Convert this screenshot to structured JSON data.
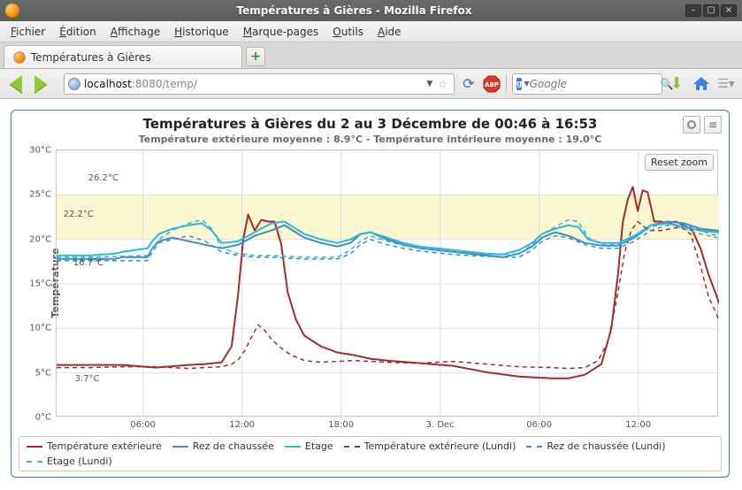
{
  "window": {
    "title": "Températures à Gières - Mozilla Firefox"
  },
  "menubar": {
    "items": [
      "Fichier",
      "Édition",
      "Affichage",
      "Historique",
      "Marque-pages",
      "Outils",
      "Aide"
    ]
  },
  "tabs": {
    "active_label": "Températures à Gières"
  },
  "urlbar": {
    "host": "localhost",
    "rest": ":8080/temp/"
  },
  "searchbar": {
    "engine_letter": "g",
    "placeholder": "Google"
  },
  "chart": {
    "type": "line",
    "title": "Températures à Gières du 2 au 3 Décembre de 00:46 à 16:53",
    "subtitle": "Température extérieure moyenne : 8.9°C - Température intérieure moyenne : 19.0°C",
    "reset_zoom_label": "Reset zoom",
    "ylabel": "Température",
    "background_color": "#ffffff",
    "yellow_band": {
      "from": 20,
      "to": 25,
      "color": "#fcf8d2"
    },
    "grid_color": "#e0e0e0",
    "axis_color": "#c7c7c7",
    "ylim": [
      0,
      30
    ],
    "ytick_step": 5,
    "ytick_labels": [
      "0°C",
      "5°C",
      "10°C",
      "15°C",
      "20°C",
      "25°C",
      "30°C"
    ],
    "x_range_hours": 40.12,
    "xticks": [
      {
        "t": 5.23,
        "label": "06:00"
      },
      {
        "t": 11.23,
        "label": "12:00"
      },
      {
        "t": 17.23,
        "label": "18:00"
      },
      {
        "t": 23.23,
        "label": "3. Dec"
      },
      {
        "t": 29.23,
        "label": "06:00"
      },
      {
        "t": 35.23,
        "label": "12:00"
      }
    ],
    "data_labels": [
      {
        "t": 1.8,
        "y": 26.2,
        "text": "26.2°C"
      },
      {
        "t": 0.3,
        "y": 22.2,
        "text": "22.2°C"
      },
      {
        "t": 0.9,
        "y": 16.7,
        "text": "16.7°C"
      },
      {
        "t": 1.0,
        "y": 3.7,
        "text": "3.7°C"
      }
    ],
    "series": [
      {
        "name": "Température extérieure",
        "color": "#a52a2a",
        "dashed": false,
        "width": 2,
        "points": [
          [
            0,
            5.9
          ],
          [
            2,
            5.9
          ],
          [
            4,
            5.9
          ],
          [
            6,
            5.6
          ],
          [
            8,
            5.9
          ],
          [
            9,
            6.0
          ],
          [
            10,
            6.2
          ],
          [
            10.6,
            8
          ],
          [
            11.0,
            14
          ],
          [
            11.3,
            20
          ],
          [
            11.6,
            22.8
          ],
          [
            12.0,
            21.0
          ],
          [
            12.4,
            22.2
          ],
          [
            12.8,
            22.0
          ],
          [
            13.2,
            22.0
          ],
          [
            13.6,
            19.5
          ],
          [
            14.0,
            14
          ],
          [
            14.5,
            11
          ],
          [
            15,
            9.2
          ],
          [
            16,
            8.0
          ],
          [
            17,
            7.3
          ],
          [
            18,
            7.0
          ],
          [
            19,
            6.6
          ],
          [
            20,
            6.4
          ],
          [
            22,
            6.1
          ],
          [
            24,
            5.8
          ],
          [
            26,
            5.1
          ],
          [
            28,
            4.6
          ],
          [
            30,
            4.4
          ],
          [
            31,
            4.4
          ],
          [
            32,
            4.8
          ],
          [
            33,
            6.0
          ],
          [
            33.6,
            10
          ],
          [
            34.0,
            16
          ],
          [
            34.3,
            22
          ],
          [
            34.6,
            24.5
          ],
          [
            34.9,
            25.9
          ],
          [
            35.2,
            23.2
          ],
          [
            35.5,
            25.5
          ],
          [
            35.8,
            25.3
          ],
          [
            36.2,
            22.0
          ],
          [
            36.6,
            22.0
          ],
          [
            37.0,
            21.8
          ],
          [
            37.5,
            22.0
          ],
          [
            38.0,
            21.6
          ],
          [
            38.5,
            21.0
          ],
          [
            39.0,
            19.0
          ],
          [
            39.5,
            16.0
          ],
          [
            40.0,
            13.5
          ],
          [
            40.12,
            12.8
          ]
        ]
      },
      {
        "name": "Rez de chaussée",
        "color": "#3b8dd1",
        "dashed": false,
        "width": 2,
        "points": [
          [
            0,
            17.8
          ],
          [
            2,
            17.8
          ],
          [
            3.5,
            17.8
          ],
          [
            4.0,
            18.0
          ],
          [
            5.5,
            18.0
          ],
          [
            5.8,
            19.0
          ],
          [
            6.2,
            19.8
          ],
          [
            7.0,
            20.2
          ],
          [
            8.0,
            19.8
          ],
          [
            9.0,
            19.4
          ],
          [
            10.0,
            19.0
          ],
          [
            11.0,
            19.4
          ],
          [
            12.0,
            20.4
          ],
          [
            13.0,
            21.0
          ],
          [
            13.8,
            21.6
          ],
          [
            15.0,
            20.2
          ],
          [
            16.0,
            19.6
          ],
          [
            17.0,
            19.2
          ],
          [
            17.8,
            19.6
          ],
          [
            18.4,
            20.6
          ],
          [
            19.0,
            20.8
          ],
          [
            20.0,
            20.0
          ],
          [
            21.0,
            19.4
          ],
          [
            22.0,
            19.0
          ],
          [
            23.0,
            18.8
          ],
          [
            24.0,
            18.6
          ],
          [
            25.0,
            18.4
          ],
          [
            26.0,
            18.2
          ],
          [
            27.0,
            18.0
          ],
          [
            28.0,
            18.4
          ],
          [
            28.8,
            19.2
          ],
          [
            29.4,
            20.2
          ],
          [
            30.2,
            20.8
          ],
          [
            31.0,
            20.4
          ],
          [
            32.0,
            19.6
          ],
          [
            33.0,
            19.3
          ],
          [
            34.0,
            19.3
          ],
          [
            35.0,
            20.2
          ],
          [
            36.0,
            21.6
          ],
          [
            37.0,
            22.0
          ],
          [
            38.0,
            21.8
          ],
          [
            39.0,
            21.2
          ],
          [
            40.0,
            21.0
          ],
          [
            40.12,
            20.9
          ]
        ]
      },
      {
        "name": "Etage",
        "color": "#2bb8d6",
        "dashed": false,
        "width": 2,
        "points": [
          [
            0,
            18.2
          ],
          [
            2,
            18.2
          ],
          [
            3.5,
            18.4
          ],
          [
            4.0,
            18.6
          ],
          [
            5.5,
            19.0
          ],
          [
            5.8,
            19.8
          ],
          [
            6.2,
            20.6
          ],
          [
            7.0,
            21.2
          ],
          [
            8.0,
            21.6
          ],
          [
            8.8,
            21.8
          ],
          [
            9.4,
            21.0
          ],
          [
            10.0,
            19.6
          ],
          [
            11.0,
            19.8
          ],
          [
            12.0,
            20.8
          ],
          [
            13.0,
            21.8
          ],
          [
            13.8,
            22.0
          ],
          [
            15.0,
            20.6
          ],
          [
            16.0,
            20.0
          ],
          [
            17.0,
            19.6
          ],
          [
            17.8,
            20.0
          ],
          [
            18.4,
            20.6
          ],
          [
            19.0,
            20.8
          ],
          [
            20.0,
            20.2
          ],
          [
            21.0,
            19.6
          ],
          [
            22.0,
            19.2
          ],
          [
            23.0,
            19.0
          ],
          [
            24.0,
            18.8
          ],
          [
            25.0,
            18.6
          ],
          [
            26.0,
            18.4
          ],
          [
            27.0,
            18.3
          ],
          [
            28.0,
            18.8
          ],
          [
            28.8,
            19.6
          ],
          [
            29.4,
            20.6
          ],
          [
            30.2,
            21.2
          ],
          [
            31.0,
            21.6
          ],
          [
            31.6,
            21.4
          ],
          [
            32.2,
            20.0
          ],
          [
            33.0,
            19.6
          ],
          [
            34.0,
            19.6
          ],
          [
            35.0,
            20.4
          ],
          [
            36.0,
            21.6
          ],
          [
            37.0,
            21.8
          ],
          [
            38.0,
            21.4
          ],
          [
            39.0,
            21.0
          ],
          [
            40.0,
            20.8
          ],
          [
            40.12,
            20.7
          ]
        ]
      },
      {
        "name": "Température extérieure (Lundi)",
        "color": "#a52a2a",
        "dashed": true,
        "width": 1.5,
        "points": [
          [
            0,
            5.6
          ],
          [
            2,
            5.6
          ],
          [
            4,
            5.7
          ],
          [
            6,
            5.7
          ],
          [
            8,
            5.5
          ],
          [
            9,
            5.6
          ],
          [
            10,
            5.7
          ],
          [
            10.6,
            6.0
          ],
          [
            11.0,
            6.5
          ],
          [
            11.4,
            7.5
          ],
          [
            11.8,
            9.0
          ],
          [
            12.2,
            10.4
          ],
          [
            12.6,
            9.8
          ],
          [
            13.0,
            8.8
          ],
          [
            13.6,
            7.8
          ],
          [
            14.2,
            7.0
          ],
          [
            15.0,
            6.4
          ],
          [
            16.0,
            6.2
          ],
          [
            17.0,
            6.3
          ],
          [
            18.0,
            6.4
          ],
          [
            19.0,
            6.3
          ],
          [
            20.0,
            6.2
          ],
          [
            22.0,
            6.1
          ],
          [
            24.0,
            6.3
          ],
          [
            26.0,
            6.0
          ],
          [
            28.0,
            5.7
          ],
          [
            30.0,
            5.6
          ],
          [
            31.0,
            5.5
          ],
          [
            32.0,
            5.6
          ],
          [
            32.8,
            6.4
          ],
          [
            33.4,
            8.5
          ],
          [
            34.0,
            14.0
          ],
          [
            34.4,
            18.5
          ],
          [
            34.8,
            21.0
          ],
          [
            35.2,
            22.0
          ],
          [
            35.6,
            21.4
          ],
          [
            36.0,
            21.0
          ],
          [
            36.6,
            21.0
          ],
          [
            37.2,
            21.2
          ],
          [
            37.8,
            21.4
          ],
          [
            38.4,
            20.6
          ],
          [
            39.0,
            17.0
          ],
          [
            39.5,
            13.5
          ],
          [
            40.0,
            11.5
          ],
          [
            40.12,
            10.8
          ]
        ]
      },
      {
        "name": "Rez de chaussée (Lundi)",
        "color": "#3b8dd1",
        "dashed": true,
        "width": 1.5,
        "points": [
          [
            0,
            17.6
          ],
          [
            2,
            17.6
          ],
          [
            4,
            17.6
          ],
          [
            5.5,
            17.6
          ],
          [
            5.8,
            18.6
          ],
          [
            6.2,
            19.6
          ],
          [
            7.0,
            20.0
          ],
          [
            8.0,
            20.4
          ],
          [
            9.0,
            19.8
          ],
          [
            10.0,
            18.6
          ],
          [
            11.0,
            18.2
          ],
          [
            12.0,
            18.0
          ],
          [
            13.0,
            18.0
          ],
          [
            14.0,
            17.9
          ],
          [
            15.0,
            17.8
          ],
          [
            16.0,
            17.8
          ],
          [
            17.0,
            17.8
          ],
          [
            17.8,
            18.4
          ],
          [
            18.4,
            19.4
          ],
          [
            19.0,
            20.0
          ],
          [
            20.0,
            19.4
          ],
          [
            21.0,
            19.0
          ],
          [
            22.0,
            18.7
          ],
          [
            23.0,
            18.5
          ],
          [
            24.0,
            18.3
          ],
          [
            25.0,
            18.2
          ],
          [
            26.0,
            18.1
          ],
          [
            27.0,
            18.0
          ],
          [
            28.0,
            18.0
          ],
          [
            28.8,
            18.8
          ],
          [
            29.4,
            19.8
          ],
          [
            30.2,
            20.4
          ],
          [
            31.0,
            20.2
          ],
          [
            32.0,
            19.4
          ],
          [
            33.0,
            19.0
          ],
          [
            34.0,
            19.0
          ],
          [
            35.0,
            19.8
          ],
          [
            36.0,
            21.0
          ],
          [
            37.0,
            21.6
          ],
          [
            38.0,
            21.6
          ],
          [
            39.0,
            21.0
          ],
          [
            40.0,
            20.4
          ],
          [
            40.12,
            20.3
          ]
        ]
      },
      {
        "name": "Etage (Lundi)",
        "color": "#2bb8d6",
        "dashed": true,
        "width": 1.5,
        "points": [
          [
            0,
            18.0
          ],
          [
            2,
            18.0
          ],
          [
            4,
            18.1
          ],
          [
            5.5,
            18.2
          ],
          [
            5.8,
            19.0
          ],
          [
            6.2,
            20.0
          ],
          [
            7.0,
            21.0
          ],
          [
            8.0,
            21.8
          ],
          [
            8.8,
            22.2
          ],
          [
            9.4,
            21.2
          ],
          [
            10.0,
            19.0
          ],
          [
            11.0,
            18.4
          ],
          [
            12.0,
            18.2
          ],
          [
            13.0,
            18.2
          ],
          [
            14.0,
            18.1
          ],
          [
            15.0,
            18.0
          ],
          [
            16.0,
            18.0
          ],
          [
            17.0,
            18.0
          ],
          [
            17.8,
            18.8
          ],
          [
            18.4,
            19.8
          ],
          [
            19.0,
            20.4
          ],
          [
            20.0,
            19.8
          ],
          [
            21.0,
            19.3
          ],
          [
            22.0,
            19.0
          ],
          [
            23.0,
            18.8
          ],
          [
            24.0,
            18.6
          ],
          [
            25.0,
            18.5
          ],
          [
            26.0,
            18.4
          ],
          [
            27.0,
            18.3
          ],
          [
            28.0,
            18.4
          ],
          [
            28.8,
            19.4
          ],
          [
            29.4,
            20.6
          ],
          [
            30.2,
            21.4
          ],
          [
            31.0,
            22.2
          ],
          [
            31.6,
            22.0
          ],
          [
            32.2,
            20.2
          ],
          [
            33.0,
            19.4
          ],
          [
            34.0,
            19.4
          ],
          [
            35.0,
            20.2
          ],
          [
            36.0,
            21.4
          ],
          [
            37.0,
            21.8
          ],
          [
            38.0,
            21.2
          ],
          [
            39.0,
            20.6
          ],
          [
            40.0,
            20.2
          ],
          [
            40.12,
            20.1
          ]
        ]
      }
    ],
    "legend_order": [
      0,
      1,
      2,
      3,
      4,
      5
    ]
  }
}
